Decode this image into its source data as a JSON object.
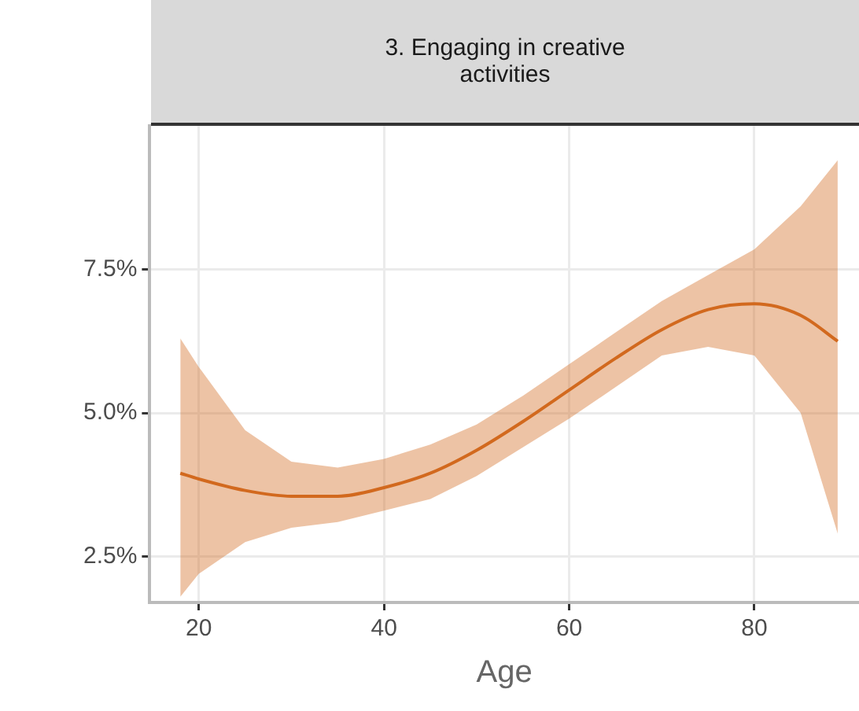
{
  "chart_data": {
    "type": "line",
    "title": "3. Engaging in creative activities",
    "xlabel": "Age",
    "x": [
      18,
      20,
      25,
      30,
      35,
      40,
      45,
      50,
      55,
      60,
      65,
      70,
      75,
      80,
      85,
      89
    ],
    "series": [
      {
        "color": "#d2691e",
        "values": [
          3.95,
          3.85,
          3.65,
          3.55,
          3.55,
          3.7,
          3.95,
          4.35,
          4.85,
          5.4,
          5.95,
          6.45,
          6.8,
          6.9,
          6.7,
          6.25
        ],
        "lower": [
          1.8,
          2.2,
          2.75,
          3.0,
          3.1,
          3.3,
          3.5,
          3.9,
          4.4,
          4.9,
          5.45,
          6.0,
          6.15,
          6.0,
          5.0,
          2.9
        ],
        "upper": [
          6.3,
          5.8,
          4.7,
          4.15,
          4.05,
          4.2,
          4.45,
          4.8,
          5.3,
          5.85,
          6.4,
          6.95,
          7.4,
          7.85,
          8.6,
          9.4
        ]
      }
    ],
    "xlim": [
      14.7,
      91.3
    ],
    "ylim": [
      1.7,
      10
    ],
    "xticks": [
      20,
      40,
      60,
      80
    ],
    "yticks": [
      {
        "value": 2.5,
        "label": "2.5%"
      },
      {
        "value": 5,
        "label": "5.0%"
      },
      {
        "value": 7.5,
        "label": "7.5%"
      }
    ],
    "grid": true,
    "marker": "none",
    "line_style": "solid"
  }
}
